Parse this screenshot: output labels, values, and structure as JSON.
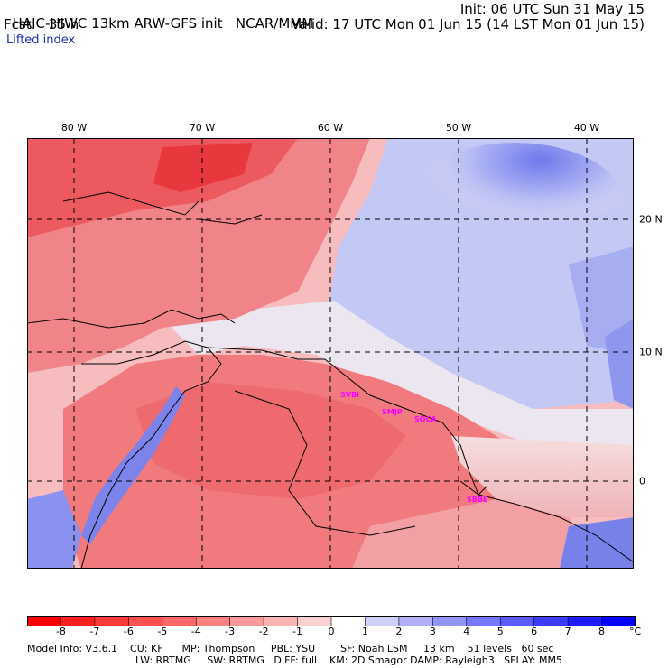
{
  "header": {
    "title": "HAIC-HIWC 13km ARW-GFS init",
    "org": "NCAR/MMM",
    "forecast": "Fcst:   35 h",
    "init": "Init: 06 UTC Sun 31 May 15",
    "valid": "Valid: 17 UTC Mon 01 Jun 15 (14 LST Mon 01 Jun 15)"
  },
  "field_name": "Lifted index",
  "map": {
    "lon_labels": [
      "80 W",
      "70 W",
      "60 W",
      "50 W",
      "40 W"
    ],
    "lat_labels": [
      "20 N",
      "10 N",
      "0"
    ],
    "stations": [
      "SVBI",
      "SMJP",
      "SOCA",
      "SBBE"
    ],
    "colors": {
      "strong_unstable": "#ee2b2b",
      "unstable": "#f0686b",
      "weak_unstable": "#f7a6a6",
      "neutral": "#f3eaf1",
      "stable": "#b8bdf2",
      "strong_stable": "#6b74ea",
      "coast": "#000000",
      "station": "#ff00ff"
    }
  },
  "colorbar": {
    "ticks": [
      "-8",
      "-7",
      "-6",
      "-5",
      "-4",
      "-3",
      "-2",
      "-1",
      "0",
      "1",
      "2",
      "3",
      "4",
      "5",
      "6",
      "7",
      "8"
    ],
    "unit": "°C",
    "colors": [
      "#ff0000",
      "#ff2020",
      "#ff3a3a",
      "#ff5050",
      "#ff6868",
      "#ff8080",
      "#ff9a9a",
      "#ffb4b4",
      "#ffd0d0",
      "#ffffff",
      "#d0d0ff",
      "#b0b0ff",
      "#9494ff",
      "#7777ff",
      "#5a5aff",
      "#3c3cff",
      "#1e1eff",
      "#0000ff"
    ]
  },
  "model_info": {
    "line1": "Model Info: V3.6.1    CU: KF      MP: Thompson     PBL: YSU        SF: Noah LSM     13 km    51 levels   60 sec",
    "line2": "LW: RRTMG     SW: RRTMG   DIFF: full    KM: 2D Smagor DAMP: Rayleigh3   SFLAY: MM5"
  }
}
